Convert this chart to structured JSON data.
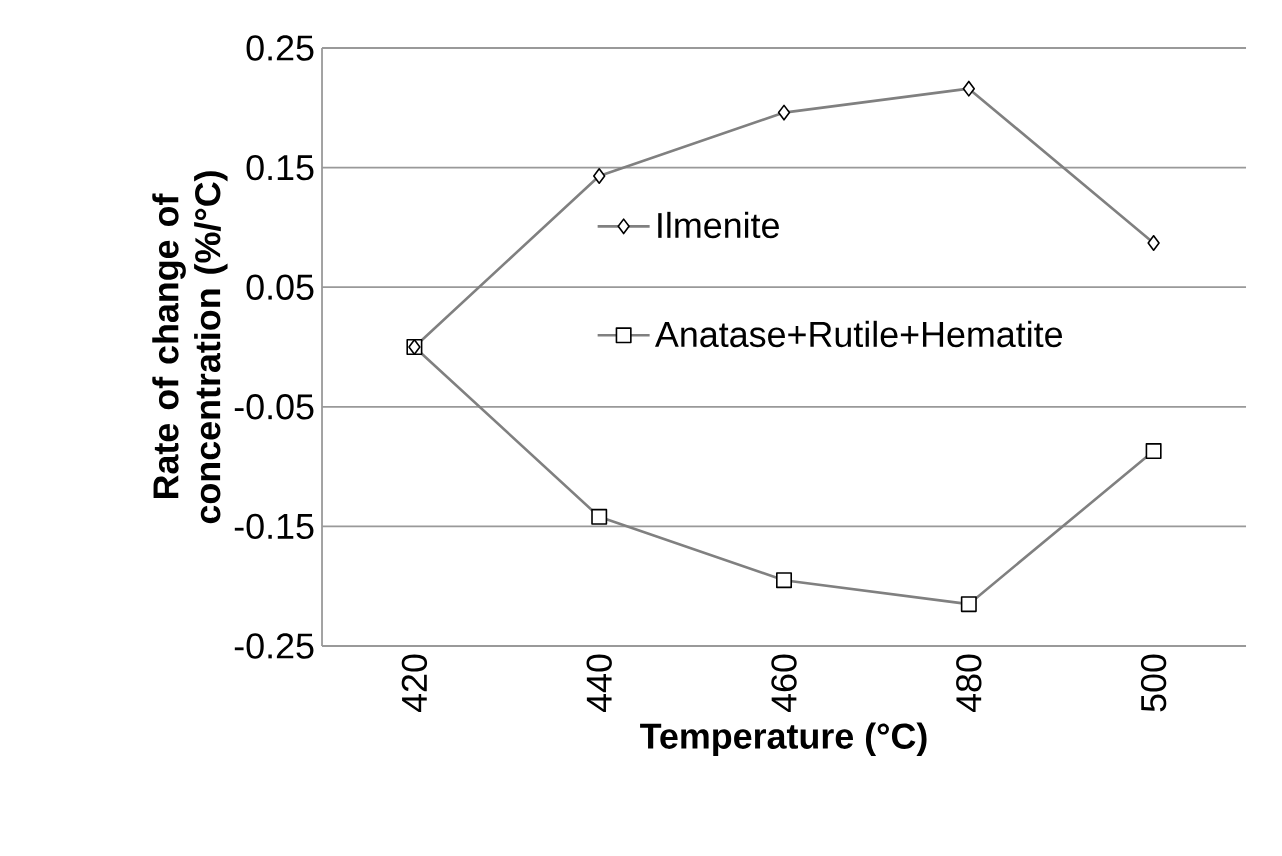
{
  "chart_data": {
    "type": "line",
    "xlabel": "Temperature (°C)",
    "ylabel": "Rate of change of concentration (%/°C)",
    "categories": [
      "420",
      "440",
      "460",
      "480",
      "500"
    ],
    "series": [
      {
        "name": "Ilmenite",
        "color": "#808080",
        "marker": "diamond",
        "values": [
          0,
          0.143,
          0.196,
          0.216,
          0.087
        ]
      },
      {
        "name": "Anatase+Rutile+Hematite",
        "color": "#808080",
        "marker": "square",
        "values": [
          0,
          -0.142,
          -0.195,
          -0.215,
          -0.087
        ]
      }
    ],
    "ylim": [
      -0.25,
      0.25
    ],
    "yticks": [
      -0.25,
      -0.15,
      -0.05,
      0.05,
      0.15,
      0.25
    ],
    "grid": "y",
    "legend": "right"
  }
}
